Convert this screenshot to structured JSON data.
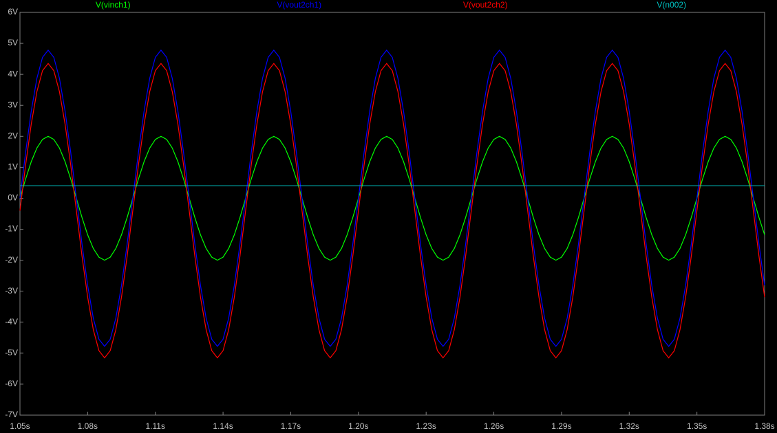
{
  "chart_data": {
    "type": "line",
    "x": [
      1.05,
      1.0525,
      1.055,
      1.0575,
      1.06,
      1.0625,
      1.065,
      1.0675,
      1.07,
      1.0725,
      1.075,
      1.0775,
      1.08,
      1.0825,
      1.085,
      1.0875,
      1.09,
      1.0925,
      1.095,
      1.0975,
      1.1,
      1.1025,
      1.105,
      1.1075,
      1.11,
      1.1125,
      1.115,
      1.1175,
      1.12,
      1.1225,
      1.125,
      1.1275,
      1.13,
      1.1325,
      1.135,
      1.1375,
      1.14,
      1.1425,
      1.145,
      1.1475,
      1.15,
      1.1525,
      1.155,
      1.1575,
      1.16,
      1.1625,
      1.165,
      1.1675,
      1.17,
      1.1725,
      1.175,
      1.1775,
      1.18,
      1.1825,
      1.185,
      1.1875,
      1.19,
      1.1925,
      1.195,
      1.1975,
      1.2,
      1.2025,
      1.205,
      1.2075,
      1.21,
      1.2125,
      1.215,
      1.2175,
      1.22,
      1.2225,
      1.225,
      1.2275,
      1.23,
      1.2325,
      1.235,
      1.2375,
      1.24,
      1.2425,
      1.245,
      1.2475,
      1.25,
      1.2525,
      1.255,
      1.2575,
      1.26,
      1.2625,
      1.265,
      1.2675,
      1.27,
      1.2725,
      1.275,
      1.2775,
      1.28,
      1.2825,
      1.285,
      1.2875,
      1.29,
      1.2925,
      1.295,
      1.2975,
      1.3,
      1.3025,
      1.305,
      1.3075,
      1.31,
      1.3125,
      1.315,
      1.3175,
      1.32,
      1.3225,
      1.325,
      1.3275,
      1.33,
      1.3325,
      1.335,
      1.3375,
      1.34,
      1.3425,
      1.345,
      1.3475,
      1.35,
      1.3525,
      1.355,
      1.3575,
      1.36,
      1.3625,
      1.365,
      1.3675,
      1.37,
      1.3725,
      1.375,
      1.3775,
      1.38
    ],
    "series": [
      {
        "name": "V(vinch1)",
        "color": "#00ff00",
        "values": [
          0,
          0.62,
          1.18,
          1.62,
          1.9,
          2,
          1.9,
          1.62,
          1.18,
          0.62,
          0,
          -0.62,
          -1.18,
          -1.62,
          -1.9,
          -2,
          -1.9,
          -1.62,
          -1.18,
          -0.62,
          0,
          0.62,
          1.18,
          1.62,
          1.9,
          2,
          1.9,
          1.62,
          1.18,
          0.62,
          0,
          -0.62,
          -1.18,
          -1.62,
          -1.9,
          -2,
          -1.9,
          -1.62,
          -1.18,
          -0.62,
          0,
          0.62,
          1.18,
          1.62,
          1.9,
          2,
          1.9,
          1.62,
          1.18,
          0.62,
          0,
          -0.62,
          -1.18,
          -1.62,
          -1.9,
          -2,
          -1.9,
          -1.62,
          -1.18,
          -0.62,
          0,
          0.62,
          1.18,
          1.62,
          1.9,
          2,
          1.9,
          1.62,
          1.18,
          0.62,
          0,
          -0.62,
          -1.18,
          -1.62,
          -1.9,
          -2,
          -1.9,
          -1.62,
          -1.18,
          -0.62,
          0,
          0.62,
          1.18,
          1.62,
          1.9,
          2,
          1.9,
          1.62,
          1.18,
          0.62,
          0,
          -0.62,
          -1.18,
          -1.62,
          -1.9,
          -2,
          -1.9,
          -1.62,
          -1.18,
          -0.62,
          0,
          0.62,
          1.18,
          1.62,
          1.9,
          2,
          1.9,
          1.62,
          1.18,
          0.62,
          0,
          -0.62,
          -1.18,
          -1.62,
          -1.9,
          -2,
          -1.9,
          -1.62,
          -1.18,
          -0.62,
          0,
          0.62,
          1.18,
          1.62,
          1.9,
          2,
          1.9,
          1.62,
          1.18,
          0.62,
          0,
          -0.62,
          -1.18
        ]
      },
      {
        "name": "V(vout2ch1)",
        "color": "#0000ff",
        "values": [
          0,
          1.48,
          2.81,
          3.87,
          4.55,
          4.78,
          4.55,
          3.87,
          2.81,
          1.48,
          0,
          -1.48,
          -2.81,
          -3.87,
          -4.55,
          -4.78,
          -4.55,
          -3.87,
          -2.81,
          -1.48,
          0,
          1.48,
          2.81,
          3.87,
          4.55,
          4.78,
          4.55,
          3.87,
          2.81,
          1.48,
          0,
          -1.48,
          -2.81,
          -3.87,
          -4.55,
          -4.78,
          -4.55,
          -3.87,
          -2.81,
          -1.48,
          0,
          1.48,
          2.81,
          3.87,
          4.55,
          4.78,
          4.55,
          3.87,
          2.81,
          1.48,
          0,
          -1.48,
          -2.81,
          -3.87,
          -4.55,
          -4.78,
          -4.55,
          -3.87,
          -2.81,
          -1.48,
          0,
          1.48,
          2.81,
          3.87,
          4.55,
          4.78,
          4.55,
          3.87,
          2.81,
          1.48,
          0,
          -1.48,
          -2.81,
          -3.87,
          -4.55,
          -4.78,
          -4.55,
          -3.87,
          -2.81,
          -1.48,
          0,
          1.48,
          2.81,
          3.87,
          4.55,
          4.78,
          4.55,
          3.87,
          2.81,
          1.48,
          0,
          -1.48,
          -2.81,
          -3.87,
          -4.55,
          -4.78,
          -4.55,
          -3.87,
          -2.81,
          -1.48,
          0,
          1.48,
          2.81,
          3.87,
          4.55,
          4.78,
          4.55,
          3.87,
          2.81,
          1.48,
          0,
          -1.48,
          -2.81,
          -3.87,
          -4.55,
          -4.78,
          -4.55,
          -3.87,
          -2.81,
          -1.48,
          0,
          1.48,
          2.81,
          3.87,
          4.55,
          4.78,
          4.55,
          3.87,
          2.81,
          1.48,
          0,
          -1.48,
          -2.81
        ]
      },
      {
        "name": "V(vout2ch2)",
        "color": "#ff0000",
        "values": [
          -0.4,
          1.07,
          2.39,
          3.44,
          4.12,
          4.35,
          4.12,
          3.44,
          2.39,
          1.07,
          -0.4,
          -1.87,
          -3.19,
          -4.24,
          -4.92,
          -5.15,
          -4.92,
          -4.24,
          -3.19,
          -1.87,
          -0.4,
          1.07,
          2.39,
          3.44,
          4.12,
          4.35,
          4.12,
          3.44,
          2.39,
          1.07,
          -0.4,
          -1.87,
          -3.19,
          -4.24,
          -4.92,
          -5.15,
          -4.92,
          -4.24,
          -3.19,
          -1.87,
          -0.4,
          1.07,
          2.39,
          3.44,
          4.12,
          4.35,
          4.12,
          3.44,
          2.39,
          1.07,
          -0.4,
          -1.87,
          -3.19,
          -4.24,
          -4.92,
          -5.15,
          -4.92,
          -4.24,
          -3.19,
          -1.87,
          -0.4,
          1.07,
          2.39,
          3.44,
          4.12,
          4.35,
          4.12,
          3.44,
          2.39,
          1.07,
          -0.4,
          -1.87,
          -3.19,
          -4.24,
          -4.92,
          -5.15,
          -4.92,
          -4.24,
          -3.19,
          -1.87,
          -0.4,
          1.07,
          2.39,
          3.44,
          4.12,
          4.35,
          4.12,
          3.44,
          2.39,
          1.07,
          -0.4,
          -1.87,
          -3.19,
          -4.24,
          -4.92,
          -5.15,
          -4.92,
          -4.24,
          -3.19,
          -1.87,
          -0.4,
          1.07,
          2.39,
          3.44,
          4.12,
          4.35,
          4.12,
          3.44,
          2.39,
          1.07,
          -0.4,
          -1.87,
          -3.19,
          -4.24,
          -4.92,
          -5.15,
          -4.92,
          -4.24,
          -3.19,
          -1.87,
          -0.4,
          1.07,
          2.39,
          3.44,
          4.12,
          4.35,
          4.12,
          3.44,
          2.39,
          1.07,
          -0.4,
          -1.87,
          -3.19
        ]
      },
      {
        "name": "V(n002)",
        "color": "#00c0c0",
        "values": [
          0.4,
          0.4,
          0.4,
          0.4,
          0.4,
          0.4,
          0.4,
          0.4,
          0.4,
          0.4,
          0.4,
          0.4,
          0.4,
          0.4,
          0.4,
          0.4,
          0.4,
          0.4,
          0.4,
          0.4,
          0.4,
          0.4,
          0.4,
          0.4,
          0.4,
          0.4,
          0.4,
          0.4,
          0.4,
          0.4,
          0.4,
          0.4,
          0.4,
          0.4,
          0.4,
          0.4,
          0.4,
          0.4,
          0.4,
          0.4,
          0.4,
          0.4,
          0.4,
          0.4,
          0.4,
          0.4,
          0.4,
          0.4,
          0.4,
          0.4,
          0.4,
          0.4,
          0.4,
          0.4,
          0.4,
          0.4,
          0.4,
          0.4,
          0.4,
          0.4,
          0.4,
          0.4,
          0.4,
          0.4,
          0.4,
          0.4,
          0.4,
          0.4,
          0.4,
          0.4,
          0.4,
          0.4,
          0.4,
          0.4,
          0.4,
          0.4,
          0.4,
          0.4,
          0.4,
          0.4,
          0.4,
          0.4,
          0.4,
          0.4,
          0.4,
          0.4,
          0.4,
          0.4,
          0.4,
          0.4,
          0.4,
          0.4,
          0.4,
          0.4,
          0.4,
          0.4,
          0.4,
          0.4,
          0.4,
          0.4,
          0.4,
          0.4,
          0.4,
          0.4,
          0.4,
          0.4,
          0.4,
          0.4,
          0.4,
          0.4,
          0.4,
          0.4,
          0.4,
          0.4,
          0.4,
          0.4,
          0.4,
          0.4,
          0.4,
          0.4,
          0.4,
          0.4,
          0.4,
          0.4,
          0.4,
          0.4,
          0.4,
          0.4,
          0.4,
          0.4,
          0.4,
          0.4,
          0.4
        ]
      }
    ],
    "xlim": [
      1.05,
      1.38
    ],
    "xticks": [
      {
        "value": 1.05,
        "label": "1.05s"
      },
      {
        "value": 1.08,
        "label": "1.08s"
      },
      {
        "value": 1.11,
        "label": "1.11s"
      },
      {
        "value": 1.14,
        "label": "1.14s"
      },
      {
        "value": 1.17,
        "label": "1.17s"
      },
      {
        "value": 1.2,
        "label": "1.20s"
      },
      {
        "value": 1.23,
        "label": "1.23s"
      },
      {
        "value": 1.26,
        "label": "1.26s"
      },
      {
        "value": 1.29,
        "label": "1.29s"
      },
      {
        "value": 1.32,
        "label": "1.32s"
      },
      {
        "value": 1.35,
        "label": "1.35s"
      },
      {
        "value": 1.38,
        "label": "1.38s"
      }
    ],
    "ylim": [
      -7,
      6
    ],
    "yticks": [
      {
        "value": -7,
        "label": "-7V"
      },
      {
        "value": -6,
        "label": "-6V"
      },
      {
        "value": -5,
        "label": "-5V"
      },
      {
        "value": -4,
        "label": "-4V"
      },
      {
        "value": -3,
        "label": "-3V"
      },
      {
        "value": -2,
        "label": "-2V"
      },
      {
        "value": -1,
        "label": "-1V"
      },
      {
        "value": 0,
        "label": "0V"
      },
      {
        "value": 1,
        "label": "1V"
      },
      {
        "value": 2,
        "label": "2V"
      },
      {
        "value": 3,
        "label": "3V"
      },
      {
        "value": 4,
        "label": "4V"
      },
      {
        "value": 5,
        "label": "5V"
      },
      {
        "value": 6,
        "label": "6V"
      }
    ],
    "grid": false
  }
}
